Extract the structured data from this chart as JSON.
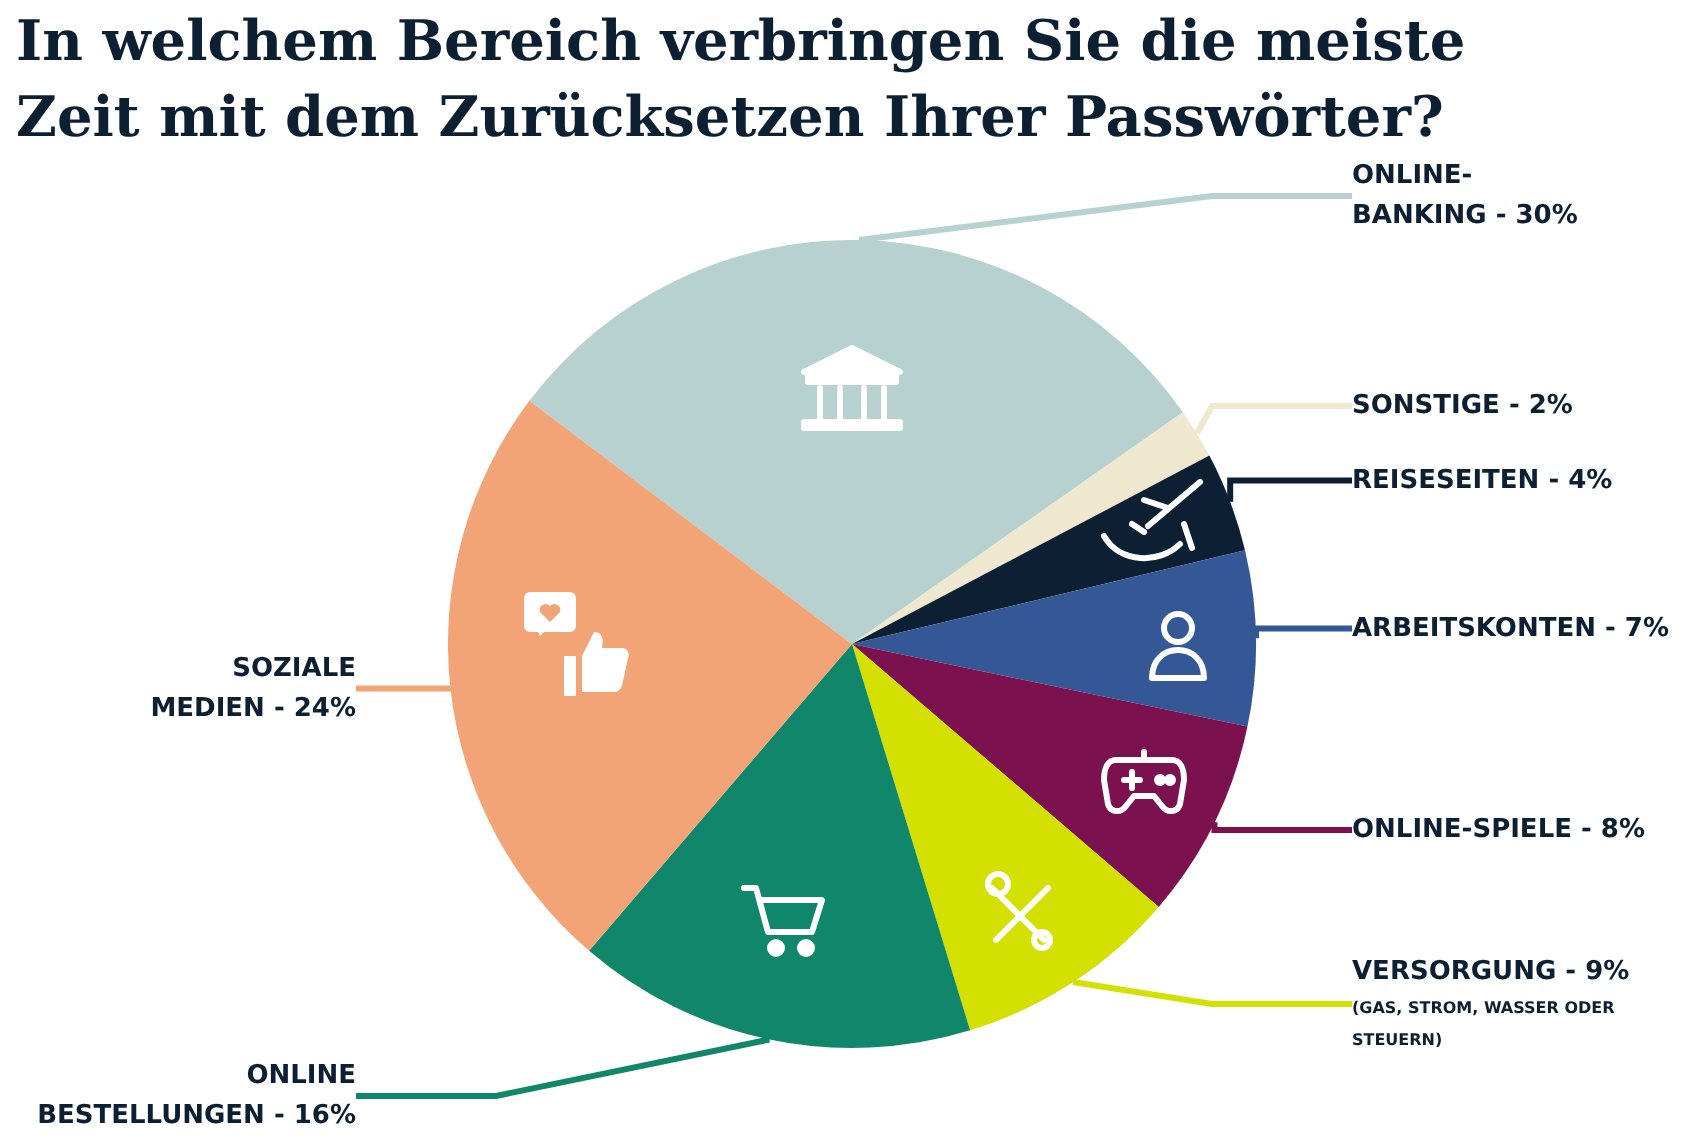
{
  "chart_data": {
    "type": "pie",
    "title": "In welchem Bereich verbringen Sie die meiste\nZeit mit dem Zurücksetzen Ihrer Passwörter?",
    "categories": [
      "ONLINE-\nBANKING",
      "SONSTIGE",
      "REISESEITEN",
      "ARBEITSKONTEN",
      "ONLINE-SPIELE",
      "VERSORGUNG",
      "ONLINE\nBESTELLUNGEN",
      "SOZIALE\nMEDIEN"
    ],
    "values": [
      30,
      2,
      4,
      7,
      8,
      9,
      16,
      24
    ],
    "value_labels": [
      "30%",
      "2%",
      "4%",
      "7%",
      "8%",
      "9%",
      "16%",
      "24%"
    ],
    "colors": [
      "#b7d1d0",
      "#efe8cf",
      "#0d2033",
      "#345895",
      "#7c1150",
      "#d4e000",
      "#10876a",
      "#f2a477"
    ],
    "annotations": [
      {
        "text": "(GAS, STROM, WASSER ODER\nSTEUERN)",
        "x": "VERSORGUNG"
      }
    ],
    "legend": false
  }
}
